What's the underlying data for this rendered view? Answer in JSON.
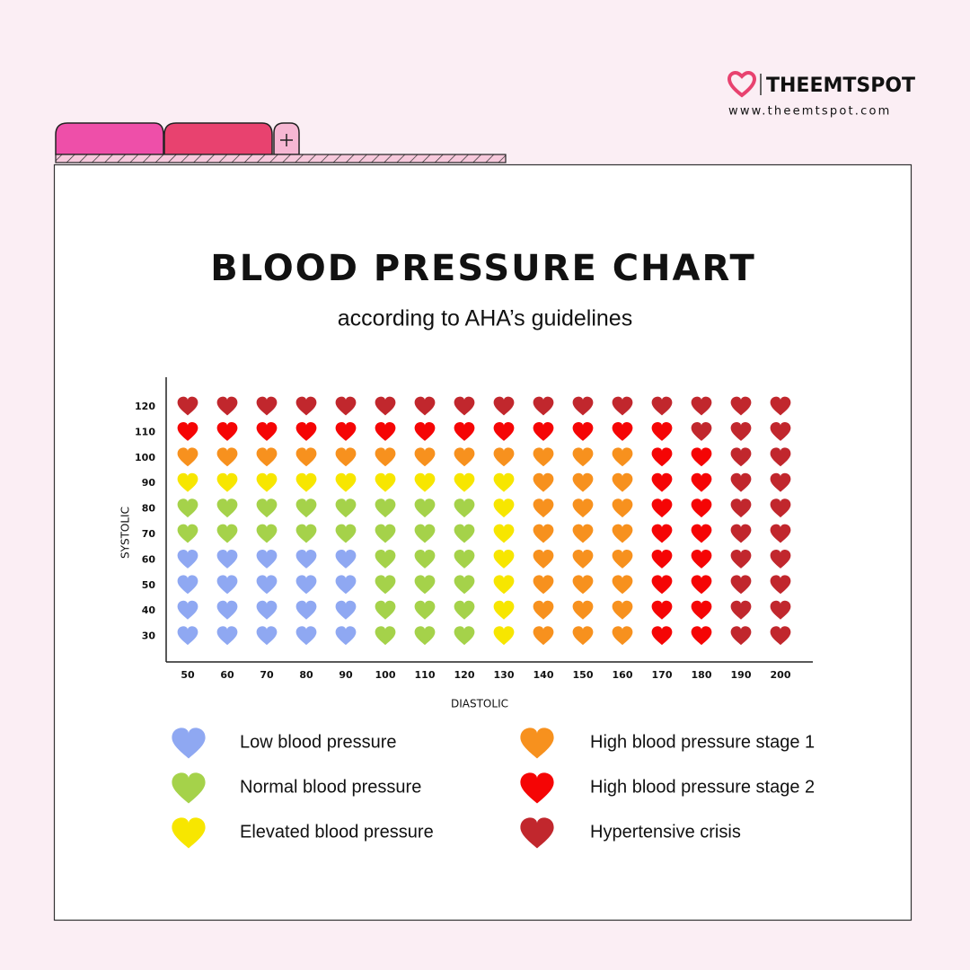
{
  "brand": {
    "name": "THEEMTSPOT",
    "url": "www.theemtspot.com"
  },
  "title": "BLOOD PRESSURE CHART",
  "subtitle": "according to AHA’s guidelines",
  "x_label": "DIASTOLIC",
  "y_label": "SYSTOLIC",
  "x_ticks": [
    50,
    60,
    70,
    80,
    90,
    100,
    110,
    120,
    130,
    140,
    150,
    160,
    170,
    180,
    190,
    200
  ],
  "y_ticks": [
    120,
    110,
    100,
    90,
    80,
    70,
    60,
    50,
    40,
    30
  ],
  "legend": [
    {
      "label": "Low blood pressure",
      "color": "#8fa8f2"
    },
    {
      "label": "Normal blood pressure",
      "color": "#a5d24a"
    },
    {
      "label": "Elevated blood pressure",
      "color": "#f7e600"
    },
    {
      "label": "High blood pressure stage 1",
      "color": "#f7911e"
    },
    {
      "label": "High blood pressure stage 2",
      "color": "#f50505"
    },
    {
      "label": "Hypertensive crisis",
      "color": "#c1272d"
    }
  ],
  "cells": [
    [
      5,
      5,
      5,
      5,
      5,
      5,
      5,
      5,
      5,
      5,
      5,
      5,
      5,
      5,
      5,
      5
    ],
    [
      4,
      4,
      4,
      4,
      4,
      4,
      4,
      4,
      4,
      4,
      4,
      4,
      4,
      5,
      5,
      5
    ],
    [
      3,
      3,
      3,
      3,
      3,
      3,
      3,
      3,
      3,
      3,
      3,
      3,
      4,
      4,
      5,
      5
    ],
    [
      2,
      2,
      2,
      2,
      2,
      2,
      2,
      2,
      2,
      3,
      3,
      3,
      4,
      4,
      5,
      5
    ],
    [
      1,
      1,
      1,
      1,
      1,
      1,
      1,
      1,
      2,
      3,
      3,
      3,
      4,
      4,
      5,
      5
    ],
    [
      1,
      1,
      1,
      1,
      1,
      1,
      1,
      1,
      2,
      3,
      3,
      3,
      4,
      4,
      5,
      5
    ],
    [
      0,
      0,
      0,
      0,
      0,
      1,
      1,
      1,
      2,
      3,
      3,
      3,
      4,
      4,
      5,
      5
    ],
    [
      0,
      0,
      0,
      0,
      0,
      1,
      1,
      1,
      2,
      3,
      3,
      3,
      4,
      4,
      5,
      5
    ],
    [
      0,
      0,
      0,
      0,
      0,
      1,
      1,
      1,
      2,
      3,
      3,
      3,
      4,
      4,
      5,
      5
    ],
    [
      0,
      0,
      0,
      0,
      0,
      1,
      1,
      1,
      2,
      3,
      3,
      3,
      4,
      4,
      5,
      5
    ]
  ]
}
